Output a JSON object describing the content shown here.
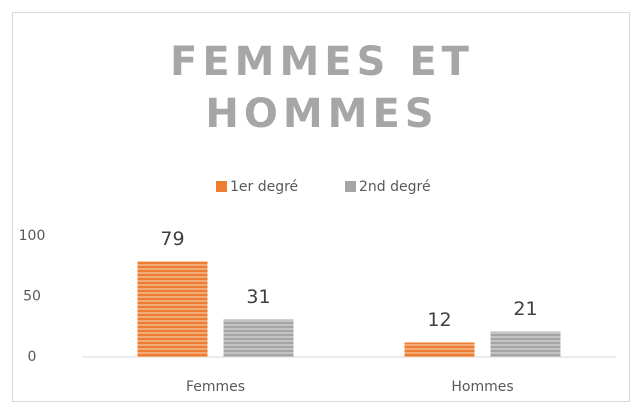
{
  "chart_data": {
    "type": "bar",
    "title": "FEMMES ET HOMMES",
    "categories": [
      "Femmes",
      "Hommes"
    ],
    "series": [
      {
        "name": "1er degré",
        "color": "#ed7d31",
        "values": [
          79,
          12
        ]
      },
      {
        "name": "2nd degré",
        "color": "#a5a5a5",
        "values": [
          31,
          21
        ]
      }
    ],
    "ylim": [
      0,
      100
    ],
    "yticks": [
      0,
      50,
      100
    ],
    "legend": "top"
  }
}
